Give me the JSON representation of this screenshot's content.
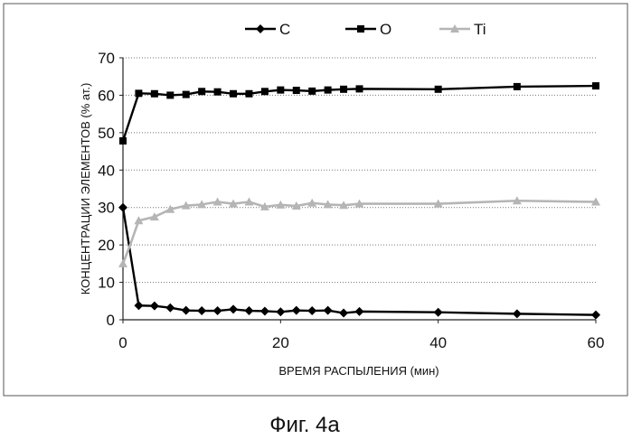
{
  "chart_data": {
    "type": "line",
    "title": "",
    "xlabel": "ВРЕМЯ РАСПЫЛЕНИЯ (мин)",
    "ylabel": "КОНЦЕНТРАЦИИ ЭЛЕМЕНТОВ (% ат.)",
    "xlim": [
      0,
      60
    ],
    "ylim": [
      0,
      70
    ],
    "xticks": [
      0,
      20,
      40,
      60
    ],
    "yticks": [
      0,
      10,
      20,
      30,
      40,
      50,
      60,
      70
    ],
    "grid": "horizontal dotted",
    "legend_position": "top",
    "series": [
      {
        "name": "C",
        "color": "#000000",
        "marker": "diamond",
        "x": [
          0,
          2,
          4,
          6,
          8,
          10,
          12,
          14,
          16,
          18,
          20,
          22,
          24,
          26,
          28,
          30,
          40,
          50,
          60
        ],
        "y": [
          30,
          3.8,
          3.7,
          3.2,
          2.5,
          2.4,
          2.4,
          2.8,
          2.4,
          2.3,
          2.1,
          2.5,
          2.4,
          2.5,
          1.8,
          2.2,
          2.0,
          1.6,
          1.3
        ]
      },
      {
        "name": "O",
        "color": "#000000",
        "marker": "square",
        "x": [
          0,
          2,
          4,
          6,
          8,
          10,
          12,
          14,
          16,
          18,
          20,
          22,
          24,
          26,
          28,
          30,
          40,
          50,
          60
        ],
        "y": [
          47.8,
          60.5,
          60.4,
          60.0,
          60.2,
          61.0,
          60.9,
          60.4,
          60.4,
          61.0,
          61.4,
          61.3,
          61.1,
          61.4,
          61.6,
          61.7,
          61.6,
          62.3,
          62.5
        ]
      },
      {
        "name": "Ti",
        "color": "#b5b5b5",
        "marker": "triangle",
        "x": [
          0,
          1,
          2,
          4,
          6,
          8,
          10,
          12,
          14,
          16,
          18,
          20,
          22,
          24,
          26,
          28,
          30,
          40,
          50,
          60
        ],
        "y": [
          15,
          20.5,
          26.5,
          27.5,
          29.5,
          30.5,
          30.8,
          31.5,
          31.0,
          31.5,
          30.2,
          30.7,
          30.4,
          31.2,
          30.8,
          30.6,
          31.0,
          31.0,
          31.8,
          31.5
        ]
      }
    ]
  },
  "caption": "Фиг. 4а"
}
